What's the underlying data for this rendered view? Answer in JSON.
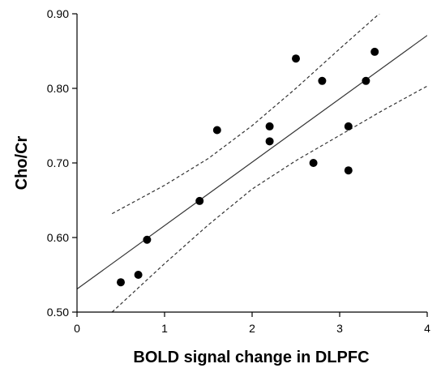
{
  "chart_data": {
    "type": "scatter",
    "title": "",
    "xlabel": "BOLD signal change in DLPFC",
    "ylabel": "Cho/Cr",
    "xlim": [
      0,
      4
    ],
    "ylim": [
      0.5,
      0.9
    ],
    "x_ticks": [
      0,
      1,
      2,
      3,
      4
    ],
    "x_tick_labels": [
      "0",
      "1",
      "2",
      "3",
      "4"
    ],
    "y_ticks": [
      0.5,
      0.6,
      0.7,
      0.8,
      0.9
    ],
    "y_tick_labels": [
      "0.50",
      "0.60",
      "0.70",
      "0.80",
      "0.90"
    ],
    "grid": false,
    "series": [
      {
        "x": [
          0.5,
          0.7,
          0.8,
          1.4,
          1.6,
          2.2,
          2.2,
          2.5,
          2.7,
          2.8,
          3.1,
          3.1,
          3.3,
          3.4
        ],
        "y": [
          0.54,
          0.55,
          0.597,
          0.649,
          0.744,
          0.749,
          0.729,
          0.84,
          0.7,
          0.81,
          0.749,
          0.69,
          0.81,
          0.849
        ]
      }
    ],
    "regression_line": {
      "intercept": 0.531,
      "slope": 0.085
    },
    "confidence_band": {
      "x": [
        0.4,
        1.0,
        1.5,
        2.0,
        2.5,
        3.0,
        3.5,
        4.0
      ],
      "upper": [
        0.632,
        0.67,
        0.706,
        0.75,
        0.8,
        0.853,
        0.905,
        0.96
      ],
      "lower": [
        0.5,
        0.565,
        0.617,
        0.665,
        0.703,
        0.737,
        0.771,
        0.803
      ]
    },
    "colors": {
      "points": "#000000",
      "line": "#333333",
      "band": "#333333",
      "axis": "#000000"
    }
  }
}
